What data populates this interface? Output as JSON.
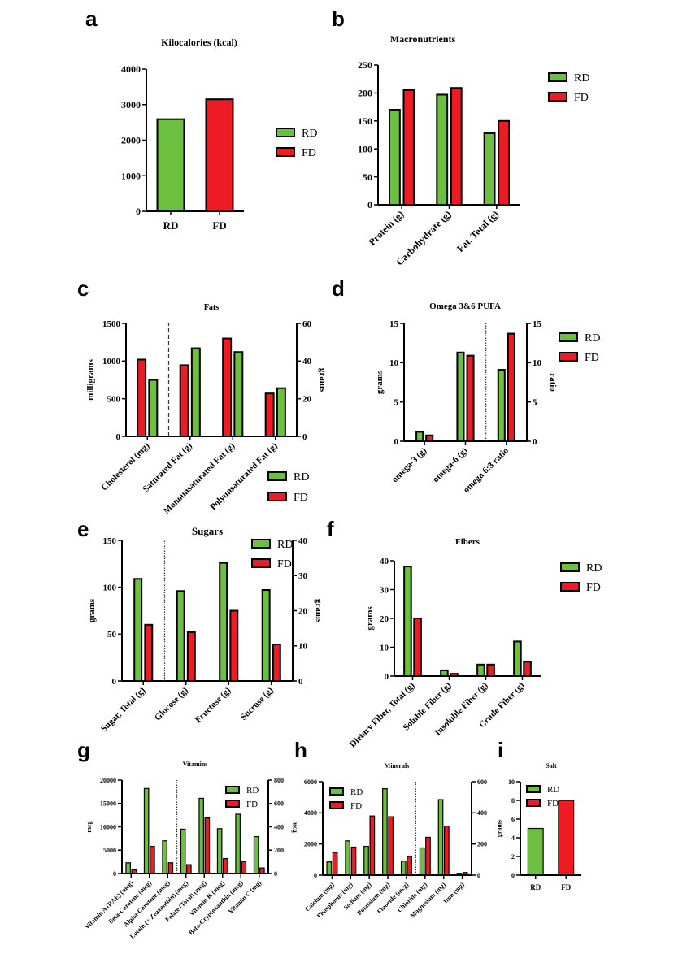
{
  "panel_labels": [
    "a",
    "b",
    "c",
    "d",
    "e",
    "f",
    "g",
    "h",
    "i"
  ],
  "colors": {
    "RD": "#6cbf3f",
    "FD": "#ed1c24",
    "outline": "#000000"
  },
  "chart_data": [
    {
      "id": "a",
      "type": "bar",
      "title": "Kilocalories (kcal)",
      "ylabel": "",
      "ylim": [
        0,
        4000
      ],
      "yticks": [
        0,
        1000,
        2000,
        3000,
        4000
      ],
      "categories": [
        "RD",
        "FD"
      ],
      "single_series_colors": [
        "RD",
        "FD"
      ],
      "series": [
        {
          "name": "RD",
          "values": [
            2590,
            3150
          ]
        }
      ],
      "legend": [
        "RD",
        "FD"
      ],
      "legend_position": "right"
    },
    {
      "id": "b",
      "type": "bar",
      "title": "Macronutrients",
      "ylabel": "",
      "ylim": [
        0,
        250
      ],
      "yticks": [
        0,
        50,
        100,
        150,
        200,
        250
      ],
      "categories": [
        "Protein (g)",
        "Carbohydrate (g)",
        "Fat, Total (g)"
      ],
      "series": [
        {
          "name": "RD",
          "values": [
            170,
            197,
            128
          ]
        },
        {
          "name": "FD",
          "values": [
            205,
            209,
            150
          ]
        }
      ],
      "legend": [
        "RD",
        "FD"
      ],
      "legend_position": "top-right"
    },
    {
      "id": "c",
      "type": "bar",
      "title": "Fats",
      "ylabel": "milligrams",
      "y2label": "grams",
      "ylim": [
        0,
        1500
      ],
      "yticks": [
        0,
        500,
        1000,
        1500
      ],
      "y2lim": [
        0,
        60
      ],
      "y2ticks": [
        0,
        20,
        40,
        60
      ],
      "categories": [
        "Cholesterol (mg)",
        "Saturated Fat (g)",
        "Monounsaturated Fat (g)",
        "Polyunsaturated Fat (g)"
      ],
      "axis": [
        "left",
        "right",
        "right",
        "right"
      ],
      "divider_after": 0,
      "divider_style": "dashed",
      "series": [
        {
          "name": "FD",
          "values": [
            1020,
            37.8,
            52,
            22.8
          ]
        },
        {
          "name": "RD",
          "values": [
            750,
            46.8,
            44.8,
            25.6
          ]
        }
      ],
      "legend": [
        "RD",
        "FD"
      ],
      "legend_position": "bottom-right"
    },
    {
      "id": "d",
      "type": "bar",
      "title": "Omega 3&6 PUFA",
      "ylabel": "grams",
      "y2label": "ratio",
      "ylim": [
        0,
        15
      ],
      "yticks": [
        0,
        5,
        10,
        15
      ],
      "y2lim": [
        0,
        15
      ],
      "y2ticks": [
        0,
        5,
        10,
        15
      ],
      "categories": [
        "omega-3 (g)",
        "omega-6 (g)",
        "omega 6:3 ratio"
      ],
      "axis": [
        "left",
        "left",
        "right"
      ],
      "divider_after": 1,
      "divider_style": "dotted",
      "series": [
        {
          "name": "RD",
          "values": [
            1.2,
            11.3,
            9.1
          ]
        },
        {
          "name": "FD",
          "values": [
            0.75,
            10.9,
            13.7
          ]
        }
      ],
      "legend": [
        "RD",
        "FD"
      ],
      "legend_position": "top-right"
    },
    {
      "id": "e",
      "type": "bar",
      "title": "Sugars",
      "ylabel": "grams",
      "y2label": "grams",
      "ylim": [
        0,
        150
      ],
      "yticks": [
        0,
        50,
        100,
        150
      ],
      "y2lim": [
        0,
        40
      ],
      "y2ticks": [
        0,
        10,
        20,
        30,
        40
      ],
      "categories": [
        "Sugar, Total (g)",
        "Glucose (g)",
        "Fructose (g)",
        "Sucrose (g)"
      ],
      "axis": [
        "left",
        "right",
        "right",
        "right"
      ],
      "divider_after": 0,
      "divider_style": "dotted",
      "series": [
        {
          "name": "RD",
          "values": [
            109,
            25.6,
            33.6,
            25.9
          ]
        },
        {
          "name": "FD",
          "values": [
            60,
            13.9,
            20,
            10.4
          ]
        }
      ],
      "legend": [
        "RD",
        "FD"
      ],
      "legend_position": "top-right"
    },
    {
      "id": "f",
      "type": "bar",
      "title": "Fibers",
      "ylabel": "grams",
      "ylim": [
        0,
        40
      ],
      "yticks": [
        0,
        10,
        20,
        30,
        40
      ],
      "categories": [
        "Dietary Fiber, Total (g)",
        "Soluble Fiber (g)",
        "Insoluble Fiber (g)",
        "Crude Fiber (g)"
      ],
      "series": [
        {
          "name": "RD",
          "values": [
            38,
            2,
            4,
            12
          ]
        },
        {
          "name": "FD",
          "values": [
            20,
            0.8,
            4,
            5
          ]
        }
      ],
      "legend": [
        "RD",
        "FD"
      ],
      "legend_position": "top-right"
    },
    {
      "id": "g",
      "type": "bar",
      "title": "Vitamins",
      "ylabel": "mcg",
      "y2label": "mcg",
      "ylim": [
        0,
        20000
      ],
      "yticks": [
        0,
        5000,
        10000,
        15000,
        20000
      ],
      "y2lim": [
        0,
        800
      ],
      "y2ticks": [
        0,
        200,
        400,
        600,
        800
      ],
      "categories": [
        "Vitamin A (RAE) (mcg)",
        "Beta-Carotene (mcg)",
        "Alpha-Carotene (mcg)",
        "Lutein (+ Zeaxanthin) (mcg)",
        "Folate (Total) (mcg)",
        "Vitamin K (mcg)",
        "Beta-Cryptoxanthin (mcg)",
        "Vitamin C (mg)"
      ],
      "axis": [
        "left",
        "left",
        "left",
        "right",
        "right",
        "right",
        "right",
        "right"
      ],
      "divider_after": 2,
      "divider_style": "dotted",
      "series": [
        {
          "name": "RD",
          "values": [
            2300,
            18200,
            7000,
            380,
            644,
            384,
            508,
            316
          ]
        },
        {
          "name": "FD",
          "values": [
            800,
            5800,
            2300,
            76,
            476,
            128,
            104,
            48
          ]
        }
      ],
      "legend": [
        "RD",
        "FD"
      ],
      "legend_position": "top-right"
    },
    {
      "id": "h",
      "type": "bar",
      "title": "Minerals",
      "ylabel": "",
      "ylim": [
        0,
        6000
      ],
      "yticks": [
        0,
        2000,
        4000,
        6000
      ],
      "y2lim": [
        0,
        600
      ],
      "y2ticks": [
        0,
        200,
        400,
        600
      ],
      "categories": [
        "Calcium (mg)",
        "Phosphorus (mg)",
        "Sodium (mg)",
        "Potassium (mg)",
        "Fluoride (mcg)",
        "Chloride (mg)",
        "Magnesium (mg)",
        "Iron (mg)"
      ],
      "axis": [
        "left",
        "left",
        "left",
        "left",
        "left",
        "right",
        "right",
        "right"
      ],
      "divider_after": 4,
      "divider_style": "dotted",
      "series": [
        {
          "name": "RD",
          "values": [
            850,
            2200,
            1850,
            5550,
            900,
            175,
            485,
            12
          ]
        },
        {
          "name": "FD",
          "values": [
            1450,
            1800,
            3800,
            3750,
            1200,
            243,
            315,
            17
          ]
        }
      ],
      "legend": [
        "RD",
        "FD"
      ],
      "legend_position": "top-left"
    },
    {
      "id": "i",
      "type": "bar",
      "title": "Salt",
      "ylabel": "grams",
      "ylim": [
        0,
        10
      ],
      "yticks": [
        0,
        2,
        4,
        6,
        8,
        10
      ],
      "categories": [
        "RD",
        "FD"
      ],
      "single_series_colors": [
        "RD",
        "FD"
      ],
      "series": [
        {
          "name": "RD",
          "values": [
            5,
            8
          ]
        }
      ],
      "legend": [
        "RD",
        "FD"
      ],
      "legend_position": "top-left"
    }
  ]
}
